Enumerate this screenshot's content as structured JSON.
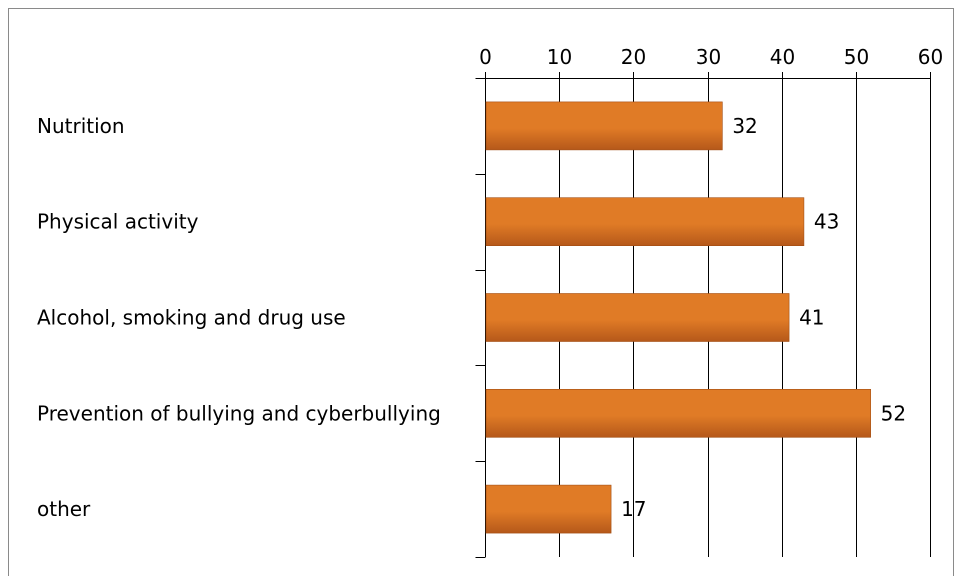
{
  "chart_data": {
    "type": "bar",
    "orientation": "horizontal",
    "categories": [
      "Nutrition",
      "Physical activity",
      "Alcohol, smoking and drug use",
      "Prevention of bullying and cyberbullying",
      "other"
    ],
    "values": [
      32,
      43,
      41,
      52,
      17
    ],
    "data_labels": [
      "32",
      "43",
      "41",
      "52",
      "17"
    ],
    "x_ticks": [
      "0",
      "10",
      "20",
      "30",
      "40",
      "50",
      "60"
    ],
    "xlim": [
      0,
      60
    ],
    "x_axis_position": "top",
    "grid": true,
    "legend": "none",
    "bar_color": "#e07b26",
    "bar_color_dark": "#b5581a",
    "title": "",
    "xlabel": "",
    "ylabel": ""
  }
}
